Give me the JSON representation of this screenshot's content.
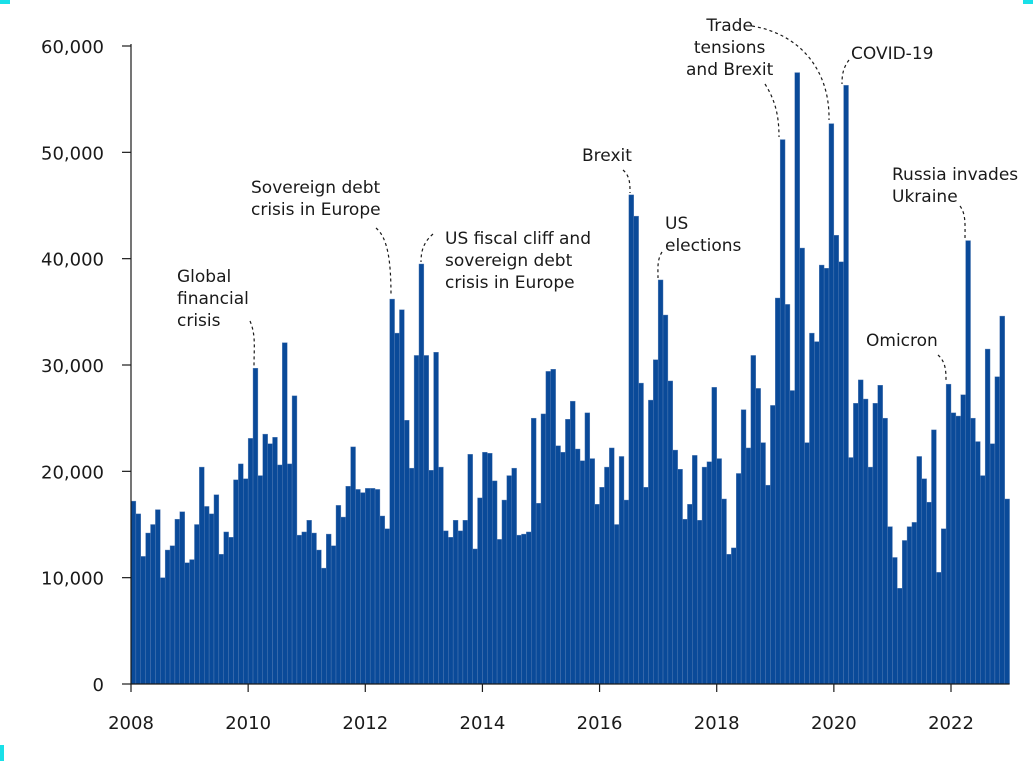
{
  "chart_data": {
    "type": "bar",
    "title": "",
    "xlabel": "",
    "ylabel": "",
    "ylim": [
      0,
      60000
    ],
    "yticks": [
      "0",
      "10,000",
      "20,000",
      "30,000",
      "40,000",
      "50,000",
      "60,000"
    ],
    "ytick_values": [
      0,
      10000,
      20000,
      30000,
      40000,
      50000,
      60000
    ],
    "xticks": [
      "2008",
      "2010",
      "2012",
      "2014",
      "2016",
      "2018",
      "2020",
      "2022"
    ],
    "xtick_years": [
      2008,
      2010,
      2012,
      2014,
      2016,
      2018,
      2020,
      2022
    ],
    "start_year": 2008,
    "frequency": "monthly",
    "bar_color": "#0a4a99",
    "values": [
      17200,
      16000,
      12000,
      14200,
      15000,
      16400,
      10000,
      12600,
      13000,
      15500,
      16200,
      11400,
      11700,
      15000,
      20400,
      16700,
      16000,
      17800,
      12200,
      14300,
      13800,
      19200,
      20700,
      19300,
      23100,
      29700,
      19600,
      23500,
      22600,
      23200,
      20600,
      32100,
      20700,
      27100,
      14000,
      14300,
      15400,
      14200,
      12600,
      10900,
      14100,
      13000,
      16800,
      15700,
      18600,
      22300,
      18300,
      18000,
      18400,
      18400,
      18300,
      15800,
      14600,
      36200,
      33000,
      35200,
      24800,
      20300,
      30900,
      39500,
      30900,
      20100,
      31200,
      20400,
      14400,
      13800,
      15400,
      14400,
      15400,
      21600,
      12700,
      17500,
      21800,
      21700,
      19100,
      13600,
      17300,
      19600,
      20300,
      14000,
      14100,
      14300,
      25000,
      17000,
      25400,
      29400,
      29600,
      22400,
      21800,
      24900,
      26600,
      22100,
      21000,
      25500,
      21200,
      16900,
      18500,
      20400,
      22200,
      15000,
      21400,
      17300,
      46000,
      44000,
      28300,
      18500,
      26700,
      30500,
      38000,
      34700,
      28500,
      22000,
      20200,
      15500,
      16900,
      21500,
      15400,
      20400,
      20900,
      27900,
      21200,
      17400,
      12200,
      12800,
      19800,
      25800,
      22200,
      30900,
      27800,
      22700,
      18700,
      26200,
      36300,
      51200,
      35700,
      27600,
      57500,
      41000,
      22700,
      33000,
      32200,
      39400,
      39100,
      52700,
      42200,
      39700,
      56300,
      21300,
      26400,
      28600,
      26800,
      20400,
      26400,
      28100,
      25000,
      14800,
      11900,
      9000,
      13500,
      14800,
      15200,
      21400,
      19300,
      17100,
      23900,
      10500,
      14600,
      28200,
      25500,
      25200,
      27200,
      41700,
      25000,
      22800,
      19600,
      31500,
      22600,
      28900,
      34600,
      17400
    ],
    "annotations": [
      {
        "text": "Global\nfinancial\ncrisis",
        "month_index": 25
      },
      {
        "text": "Sovereign debt\ncrisis in Europe",
        "month_index": 53
      },
      {
        "text": "US fiscal cliff and\nsovereign debt\ncrisis in Europe",
        "month_index": 59
      },
      {
        "text": "Brexit",
        "month_index": 102
      },
      {
        "text": "US\nelections",
        "month_index": 108
      },
      {
        "text": "Trade\ntensions\nand Brexit",
        "month_index": 133
      },
      {
        "text": "COVID-19",
        "month_index": 146
      },
      {
        "text": "Omicron",
        "month_index": 167
      },
      {
        "text": "Russia invades\nUkraine",
        "month_index": 171
      }
    ]
  }
}
